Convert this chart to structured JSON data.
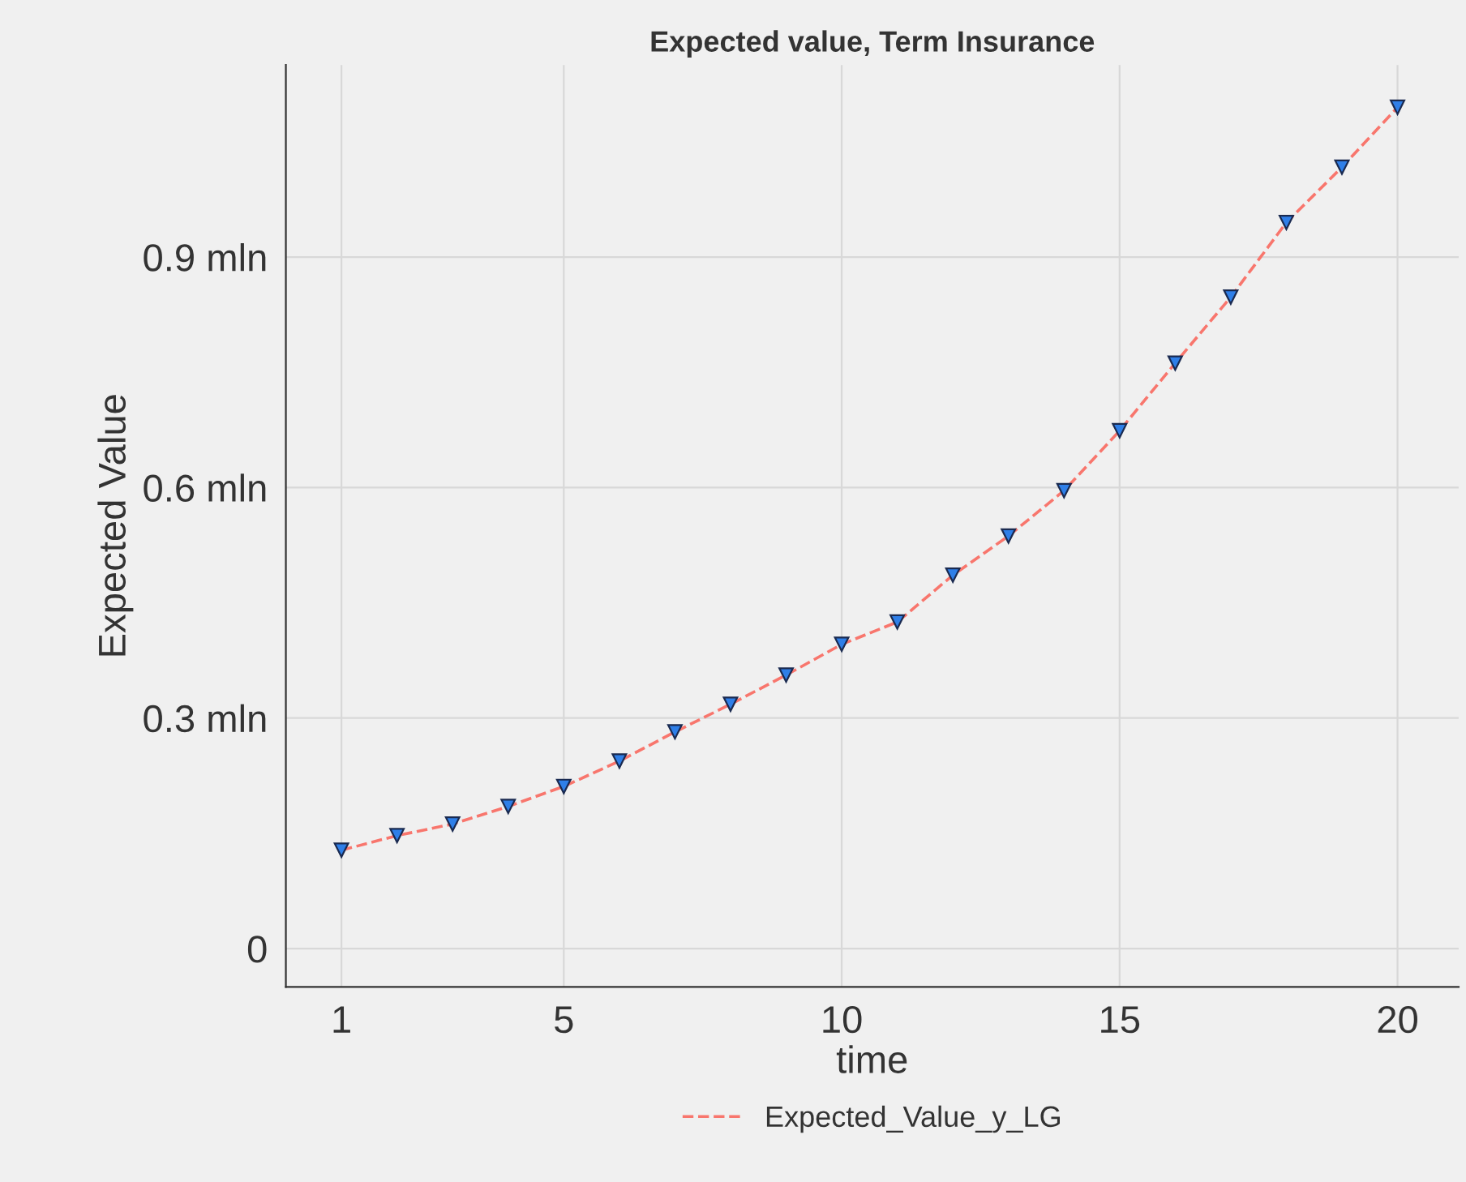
{
  "chart_data": {
    "type": "line",
    "title": "Expected value, Term Insurance",
    "xlabel": "time",
    "ylabel": "Expected Value",
    "x": [
      1,
      2,
      3,
      4,
      5,
      6,
      7,
      8,
      9,
      10,
      11,
      12,
      13,
      14,
      15,
      16,
      17,
      18,
      19,
      20
    ],
    "series": [
      {
        "name": "Expected_Value_y_LG",
        "color": "#f8766d",
        "values": [
          0.128,
          0.147,
          0.162,
          0.185,
          0.211,
          0.244,
          0.282,
          0.318,
          0.356,
          0.396,
          0.425,
          0.486,
          0.537,
          0.596,
          0.674,
          0.762,
          0.848,
          0.945,
          1.017,
          1.095
        ]
      }
    ],
    "xlim": [
      0,
      21.1
    ],
    "xticks": [
      1,
      5,
      10,
      15,
      20
    ],
    "ylim": [
      -0.05,
      1.15
    ],
    "yticks": [
      0,
      {
        "value": 0.3,
        "label": "0.3 mln"
      },
      {
        "value": 0.6,
        "label": "0.6 mln"
      },
      {
        "value": 0.9,
        "label": "0.9 mln"
      }
    ],
    "grid": true,
    "legend": "bottom",
    "marker": "triangle",
    "line_style": "dashed"
  }
}
